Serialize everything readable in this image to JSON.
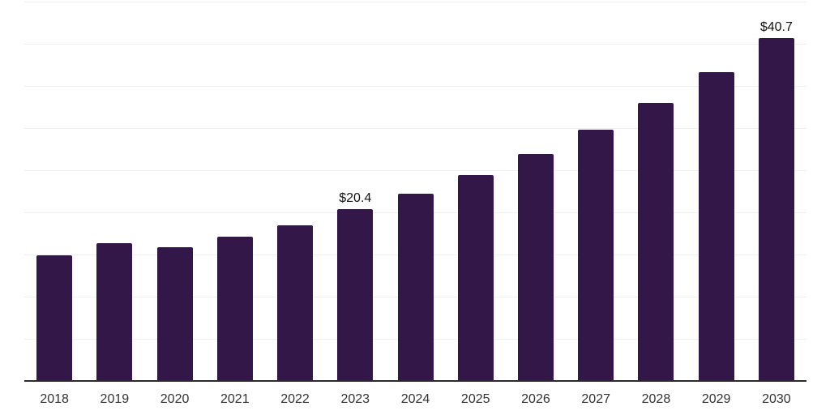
{
  "chart_data": {
    "type": "bar",
    "title": "",
    "xlabel": "",
    "ylabel": "",
    "categories": [
      "2018",
      "2019",
      "2020",
      "2021",
      "2022",
      "2023",
      "2024",
      "2025",
      "2026",
      "2027",
      "2028",
      "2029",
      "2030"
    ],
    "values": [
      14.9,
      16.3,
      15.9,
      17.1,
      18.5,
      20.4,
      22.2,
      24.4,
      26.9,
      29.8,
      33.0,
      36.6,
      40.7
    ],
    "data_labels": {
      "2023": "$20.4",
      "2030": "$40.7"
    },
    "ylim": [
      0,
      45
    ],
    "gridline_step": 5,
    "grid": true,
    "legend_position": "none",
    "y_axis_tick_labels_visible": false
  },
  "colors": {
    "bar": "#331749",
    "axis_line": "#2b2b2b",
    "gridline": "#f0f0f0",
    "tick_label": "#333333",
    "data_label": "#111111",
    "background": "#ffffff"
  }
}
